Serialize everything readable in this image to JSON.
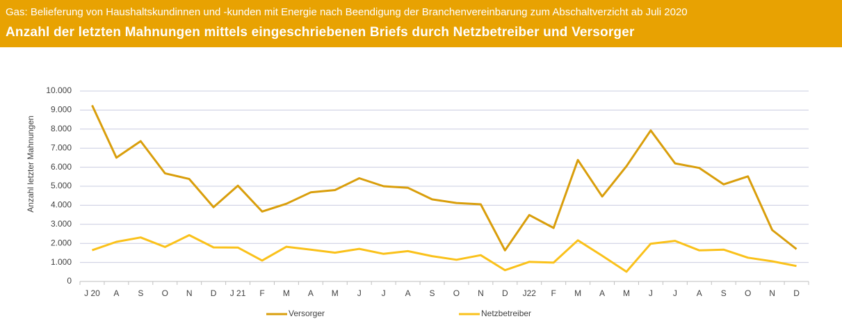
{
  "chart_data": {
    "type": "line",
    "subtitle": "Gas: Belieferung von Haushaltskundinnen und -kunden mit Energie nach Beendigung der Branchenvereinbarung zum Abschaltverzicht ab Juli 2020",
    "title": "Anzahl der letzten Mahnungen mittels eingeschriebenen Briefs durch Netzbetreiber und Versorger",
    "y_label": "Anzahl letzter Mahnungen",
    "categories": [
      "J 20",
      "A",
      "S",
      "O",
      "N",
      "D",
      "J 21",
      "F",
      "M",
      "A",
      "M",
      "J",
      "J",
      "A",
      "S",
      "O",
      "N",
      "D",
      "J22",
      "F",
      "M",
      "A",
      "M",
      "J",
      "J",
      "A",
      "S",
      "O",
      "N",
      "D"
    ],
    "series": [
      {
        "name": "Versorger",
        "color": "#D99E0B",
        "values": [
          9250,
          6500,
          7370,
          5680,
          5380,
          3900,
          5030,
          3670,
          4080,
          4680,
          4800,
          5420,
          5000,
          4920,
          4310,
          4120,
          4050,
          1630,
          3490,
          2810,
          6380,
          4460,
          6050,
          7930,
          6200,
          5960,
          5100,
          5520,
          2700,
          1700
        ]
      },
      {
        "name": "Netzbetreiber",
        "color": "#FAC11A",
        "values": [
          1640,
          2080,
          2310,
          1810,
          2430,
          1790,
          1780,
          1100,
          1820,
          1670,
          1510,
          1710,
          1450,
          1590,
          1330,
          1140,
          1380,
          590,
          1030,
          990,
          2160,
          1350,
          510,
          1980,
          2130,
          1630,
          1670,
          1250,
          1060,
          810
        ]
      }
    ],
    "ylim": [
      0,
      10000
    ],
    "yticks": [
      0,
      {
        "value": 1000,
        "label": "1.000"
      },
      {
        "value": 2000,
        "label": "2.000"
      },
      {
        "value": 3000,
        "label": "3.000"
      },
      {
        "value": 4000,
        "label": "4.000"
      },
      {
        "value": 5000,
        "label": "5.000"
      },
      {
        "value": 6000,
        "label": "6.000"
      },
      {
        "value": 7000,
        "label": "7.000"
      },
      {
        "value": 8000,
        "label": "8.000"
      },
      {
        "value": 9000,
        "label": "9.000"
      },
      {
        "value": 10000,
        "label": "10.000"
      }
    ],
    "grid": true,
    "legend": "bottom"
  }
}
